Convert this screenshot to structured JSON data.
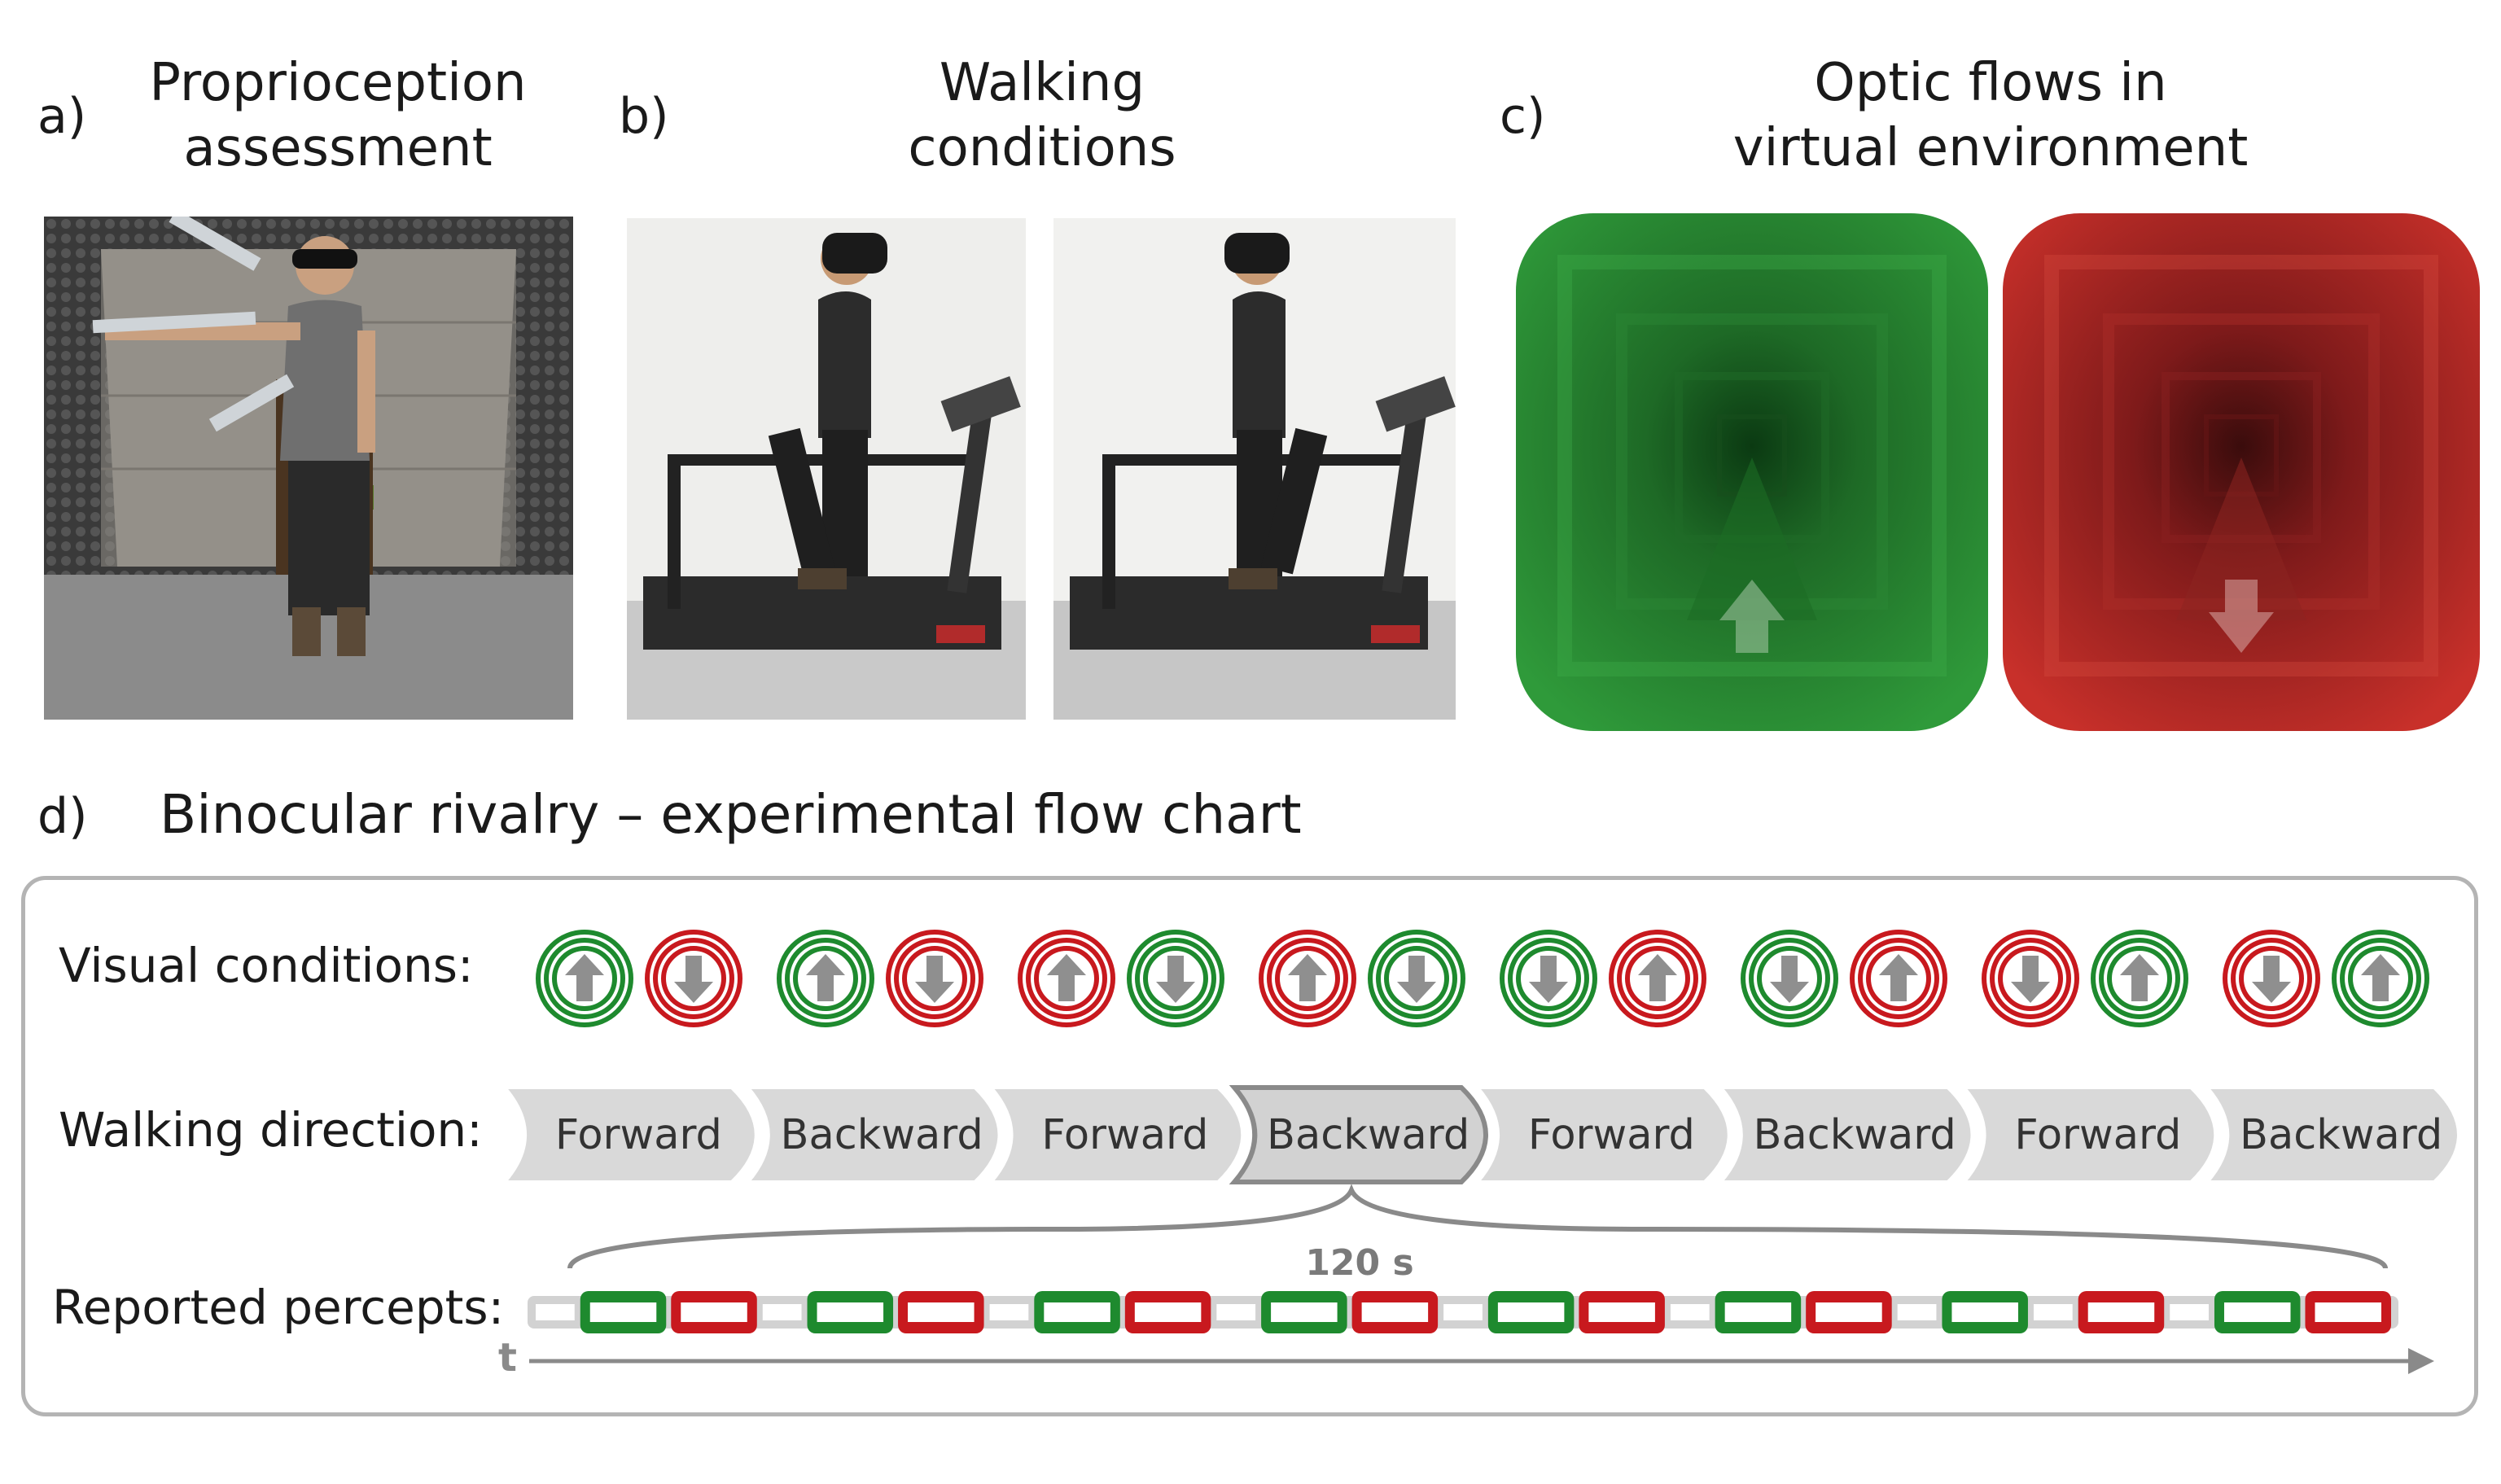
{
  "panels": {
    "a": {
      "label": "a)",
      "title_line1": "Proprioception",
      "title_line2": "assessment"
    },
    "b": {
      "label": "b)",
      "title_line1": "Walking",
      "title_line2": "conditions"
    },
    "c": {
      "label": "c)",
      "title_line1": "Optic flows in",
      "title_line2": "virtual environment"
    },
    "d": {
      "label": "d)",
      "title": "Binocular rivalry – experimental flow chart"
    }
  },
  "optic_flows": [
    {
      "color": "green",
      "arrow": "up"
    },
    {
      "color": "red",
      "arrow": "down"
    }
  ],
  "flowchart": {
    "rows": {
      "visual_conditions": "Visual conditions:",
      "walking_direction": "Walking direction:",
      "reported_percepts": "Reported percepts:"
    },
    "visual_condition_pairs": [
      [
        {
          "ring": "green",
          "arrow": "up"
        },
        {
          "ring": "red",
          "arrow": "down"
        }
      ],
      [
        {
          "ring": "green",
          "arrow": "up"
        },
        {
          "ring": "red",
          "arrow": "down"
        }
      ],
      [
        {
          "ring": "red",
          "arrow": "up"
        },
        {
          "ring": "green",
          "arrow": "down"
        }
      ],
      [
        {
          "ring": "red",
          "arrow": "up"
        },
        {
          "ring": "green",
          "arrow": "down"
        }
      ],
      [
        {
          "ring": "green",
          "arrow": "down"
        },
        {
          "ring": "red",
          "arrow": "up"
        }
      ],
      [
        {
          "ring": "green",
          "arrow": "down"
        },
        {
          "ring": "red",
          "arrow": "up"
        }
      ],
      [
        {
          "ring": "red",
          "arrow": "down"
        },
        {
          "ring": "green",
          "arrow": "up"
        }
      ],
      [
        {
          "ring": "red",
          "arrow": "down"
        },
        {
          "ring": "green",
          "arrow": "up"
        }
      ]
    ],
    "walking_segments": [
      {
        "label": "Forward",
        "highlighted": false
      },
      {
        "label": "Backward",
        "highlighted": false
      },
      {
        "label": "Forward",
        "highlighted": false
      },
      {
        "label": "Backward",
        "highlighted": true
      },
      {
        "label": "Forward",
        "highlighted": false
      },
      {
        "label": "Backward",
        "highlighted": false
      },
      {
        "label": "Forward",
        "highlighted": false
      },
      {
        "label": "Backward",
        "highlighted": false
      }
    ],
    "duration_label": "120 s",
    "time_axis_label": "t",
    "percepts": [
      "gray",
      "green",
      "red",
      "gray",
      "green",
      "red",
      "gray",
      "green",
      "red",
      "gray",
      "green",
      "red",
      "gray",
      "green",
      "red",
      "gray",
      "green",
      "red",
      "gray",
      "green",
      "gray",
      "red",
      "gray",
      "green",
      "red"
    ],
    "colors": {
      "green": "#1e8a2e",
      "red": "#c8191e",
      "gray": "#9a9a9a",
      "arrow": "#8f8f8f"
    }
  }
}
